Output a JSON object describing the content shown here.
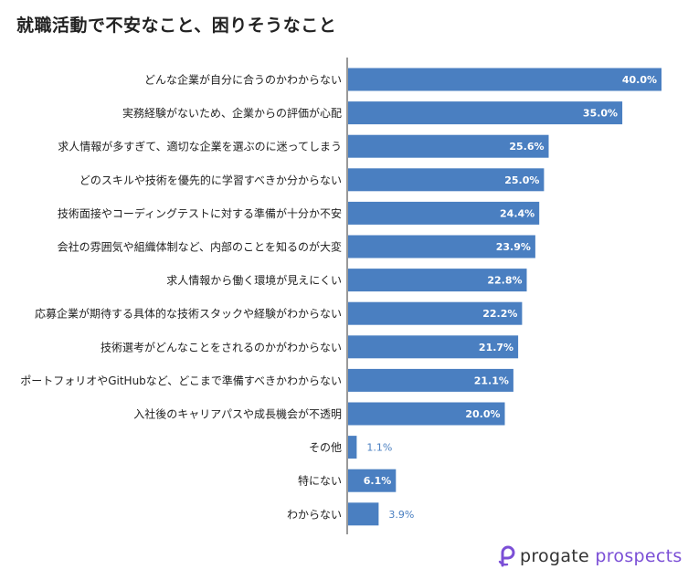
{
  "title": "就職活動で不安なこと、困りそうなこと",
  "chart_data": {
    "type": "bar",
    "orientation": "horizontal",
    "title": "就職活動で不安なこと、困りそうなこと",
    "categories": [
      "どんな企業が自分に合うのかわからない",
      "実務経験がないため、企業からの評価が心配",
      "求人情報が多すぎて、適切な企業を選ぶのに迷ってしまう",
      "どのスキルや技術を優先的に学習すべきか分からない",
      "技術面接やコーディングテストに対する準備が十分か不安",
      "会社の雰囲気や組織体制など、内部のことを知るのが大変",
      "求人情報から働く環境が見えにくい",
      "応募企業が期待する具体的な技術スタックや経験がわからない",
      "技術選考がどんなことをされるのかがわからない",
      "ポートフォリオやGitHubなど、どこまで準備すべきかわからない",
      "入社後のキャリアパスや成長機会が不透明",
      "その他",
      "特にない",
      "わからない"
    ],
    "values": [
      40.0,
      35.0,
      25.6,
      25.0,
      24.4,
      23.9,
      22.8,
      22.2,
      21.7,
      21.1,
      20.0,
      1.1,
      6.1,
      3.9
    ],
    "data_labels": [
      "40.0%",
      "35.0%",
      "25.6%",
      "25.0%",
      "24.4%",
      "23.9%",
      "22.8%",
      "22.2%",
      "21.7%",
      "21.1%",
      "20.0%",
      "1.1%",
      "6.1%",
      "3.9%"
    ],
    "xlim": [
      0,
      40
    ],
    "grid": false,
    "legend": "none",
    "bar_color": "#4a7fc1"
  },
  "logo": {
    "word1": "progate",
    "word2": "prospects",
    "brand_color": "#7b4fd6"
  }
}
